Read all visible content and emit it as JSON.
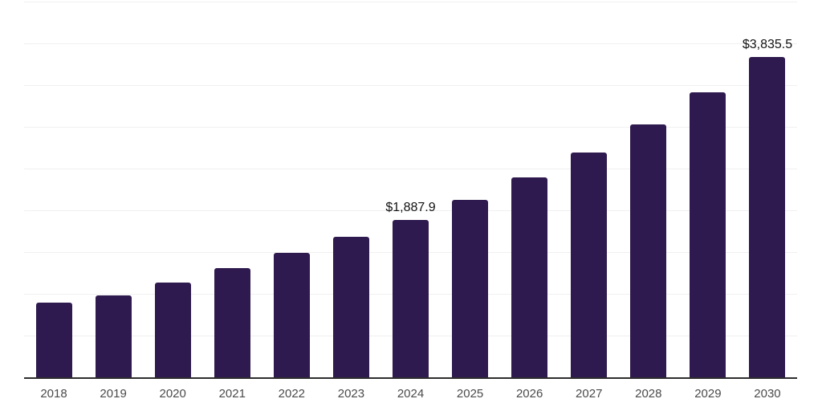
{
  "chart_data": {
    "type": "bar",
    "title": "",
    "xlabel": "",
    "ylabel": "",
    "legend": "none",
    "grid": "horizontal",
    "gridline_intervals": 9,
    "ylim": [
      0,
      4500
    ],
    "categories": [
      "2018",
      "2019",
      "2020",
      "2021",
      "2022",
      "2023",
      "2024",
      "2025",
      "2026",
      "2027",
      "2028",
      "2029",
      "2030"
    ],
    "values": [
      890,
      985,
      1130,
      1310,
      1490,
      1680,
      1887.9,
      2125,
      2390,
      2690,
      3030,
      3410,
      3835.5
    ],
    "points": [
      {
        "year": "2018",
        "value": 890,
        "label": null
      },
      {
        "year": "2019",
        "value": 985,
        "label": null
      },
      {
        "year": "2020",
        "value": 1130,
        "label": null
      },
      {
        "year": "2021",
        "value": 1310,
        "label": null
      },
      {
        "year": "2022",
        "value": 1490,
        "label": null
      },
      {
        "year": "2023",
        "value": 1680,
        "label": null
      },
      {
        "year": "2024",
        "value": 1887.9,
        "label": "$1,887.9"
      },
      {
        "year": "2025",
        "value": 2125,
        "label": null
      },
      {
        "year": "2026",
        "value": 2390,
        "label": null
      },
      {
        "year": "2027",
        "value": 2690,
        "label": null
      },
      {
        "year": "2028",
        "value": 3030,
        "label": null
      },
      {
        "year": "2029",
        "value": 3410,
        "label": null
      },
      {
        "year": "2030",
        "value": 3835.5,
        "label": "$3,835.5"
      }
    ]
  },
  "colors": {
    "bar": "#2e1a4e",
    "axis": "#2d2d2d",
    "gridline": "#f0f0f0",
    "tick_label": "#4a4a4a",
    "value_label": "#111111",
    "background": "#ffffff"
  }
}
